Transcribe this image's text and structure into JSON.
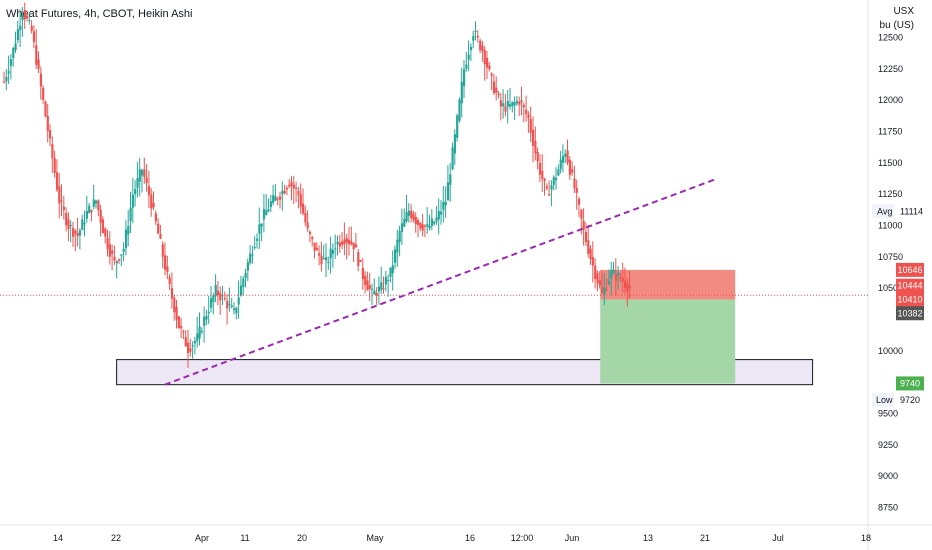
{
  "title": "Wheat Futures, 4h, CBOT, Heikin Ashi",
  "unit_lines": [
    "USX",
    "bu (US)"
  ],
  "chart_data": {
    "type": "candlestick",
    "y_ticks": [
      "12500",
      "12250",
      "12000",
      "11750",
      "11500",
      "11250",
      "11000",
      "10750",
      "10500",
      "10000",
      "9500",
      "9250",
      "9000",
      "8750"
    ],
    "y_tick_values": [
      1250.0,
      1225.0,
      1200.0,
      1175.0,
      1150.0,
      1125.0,
      1100.0,
      1075.0,
      1050.0,
      1000.0,
      950.0,
      925.0,
      900.0,
      875.0
    ],
    "ylim": [
      865,
      1280
    ],
    "x_ticks": [
      "14",
      "22",
      "Apr",
      "11",
      "20",
      "May",
      "16",
      "12:00",
      "Jun",
      "13",
      "21",
      "Jul",
      "18"
    ],
    "price_path": [
      [
        0,
        1215
      ],
      [
        2,
        1240
      ],
      [
        4,
        1272
      ],
      [
        6,
        1255
      ],
      [
        8,
        1210
      ],
      [
        10,
        1165
      ],
      [
        12,
        1120
      ],
      [
        14,
        1100
      ],
      [
        16,
        1092
      ],
      [
        18,
        1110
      ],
      [
        20,
        1120
      ],
      [
        22,
        1090
      ],
      [
        24,
        1070
      ],
      [
        26,
        1082
      ],
      [
        28,
        1125
      ],
      [
        30,
        1145
      ],
      [
        32,
        1118
      ],
      [
        34,
        1085
      ],
      [
        36,
        1050
      ],
      [
        38,
        1020
      ],
      [
        40,
        1002
      ],
      [
        42,
        1010
      ],
      [
        44,
        1030
      ],
      [
        46,
        1048
      ],
      [
        48,
        1040
      ],
      [
        50,
        1030
      ],
      [
        52,
        1058
      ],
      [
        54,
        1082
      ],
      [
        56,
        1105
      ],
      [
        58,
        1118
      ],
      [
        60,
        1125
      ],
      [
        62,
        1135
      ],
      [
        64,
        1125
      ],
      [
        66,
        1095
      ],
      [
        68,
        1078
      ],
      [
        70,
        1070
      ],
      [
        72,
        1085
      ],
      [
        74,
        1090
      ],
      [
        76,
        1085
      ],
      [
        78,
        1060
      ],
      [
        80,
        1045
      ],
      [
        82,
        1050
      ],
      [
        84,
        1062
      ],
      [
        86,
        1095
      ],
      [
        88,
        1112
      ],
      [
        90,
        1102
      ],
      [
        92,
        1098
      ],
      [
        94,
        1105
      ],
      [
        96,
        1120
      ],
      [
        98,
        1170
      ],
      [
        100,
        1225
      ],
      [
        102,
        1255
      ],
      [
        104,
        1240
      ],
      [
        106,
        1215
      ],
      [
        108,
        1195
      ],
      [
        110,
        1195
      ],
      [
        112,
        1200
      ],
      [
        114,
        1185
      ],
      [
        116,
        1150
      ],
      [
        118,
        1125
      ],
      [
        120,
        1140
      ],
      [
        122,
        1160
      ],
      [
        124,
        1130
      ],
      [
        126,
        1095
      ],
      [
        128,
        1068
      ],
      [
        130,
        1045
      ],
      [
        132,
        1062
      ],
      [
        134,
        1058
      ],
      [
        136,
        1050
      ]
    ],
    "trendline": {
      "from": [
        38,
        973
      ],
      "to": [
        148,
        1131
      ]
    },
    "support_zone": {
      "x_from": 26,
      "x_to": 176,
      "y_from": 973,
      "y_to": 993
    },
    "position": {
      "x_from": 137,
      "x_to": 168,
      "entry": 1041.0,
      "stop": 1064.6,
      "target": 974.0
    },
    "last_price": 1044.4,
    "labels": {
      "avg": {
        "text": "Avg",
        "value": "11114"
      },
      "stop": "10646",
      "last": "10444",
      "entry": "10410",
      "prev": "10382",
      "target": "9740",
      "low": {
        "text": "Low",
        "value": "9720"
      }
    },
    "colors": {
      "up": "#26a69a",
      "down": "#ef5350",
      "trend": "#9c27b0",
      "zone_fill": "#ede7f6",
      "stop_zone": "#f28b82",
      "target_zone": "#a5d6a7",
      "target_tag": "#4caf50",
      "prev_tag": "#555555"
    }
  }
}
